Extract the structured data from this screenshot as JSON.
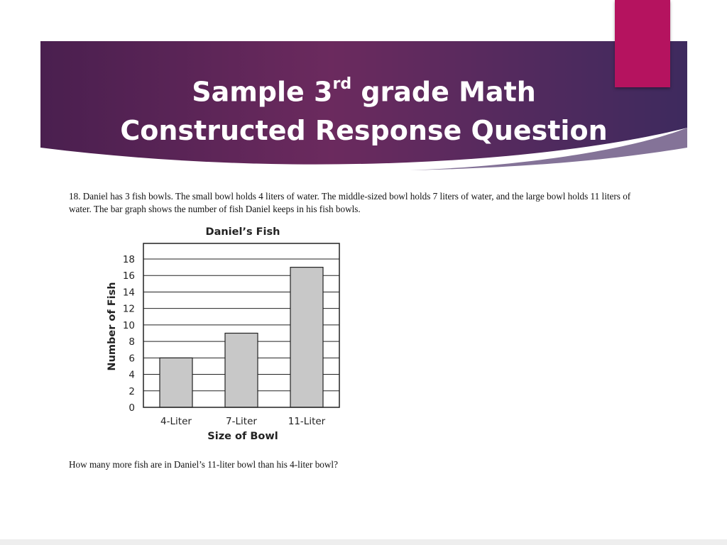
{
  "slide": {
    "title_line1_pre": "Sample 3",
    "title_sup": "rd",
    "title_line1_post": " grade Math",
    "title_line2": "Constructed Response Question",
    "question_text": "18. Daniel has 3 fish bowls. The small bowl holds 4 liters of water. The middle-sized bowl holds 7 liters of water, and the large bowl holds 11 liters of water. The bar graph shows the number of fish Daniel keeps in his fish bowls.",
    "followup_text": "How many more fish are in Daniel’s 11-liter bowl than his 4-liter bowl?",
    "colors": {
      "banner_start": "#4a1f4f",
      "banner_end": "#5a2f68",
      "accent": "#b5135f",
      "bar_fill": "#c8c8c8"
    }
  },
  "chart_data": {
    "type": "bar",
    "title": "Daniel’s Fish",
    "xlabel": "Size of Bowl",
    "ylabel": "Number of Fish",
    "categories": [
      "4-Liter",
      "7-Liter",
      "11-Liter"
    ],
    "values": [
      6,
      9,
      17
    ],
    "ylim": [
      0,
      18
    ],
    "yticks": [
      0,
      2,
      4,
      6,
      8,
      10,
      12,
      14,
      16,
      18
    ],
    "grid": true
  }
}
